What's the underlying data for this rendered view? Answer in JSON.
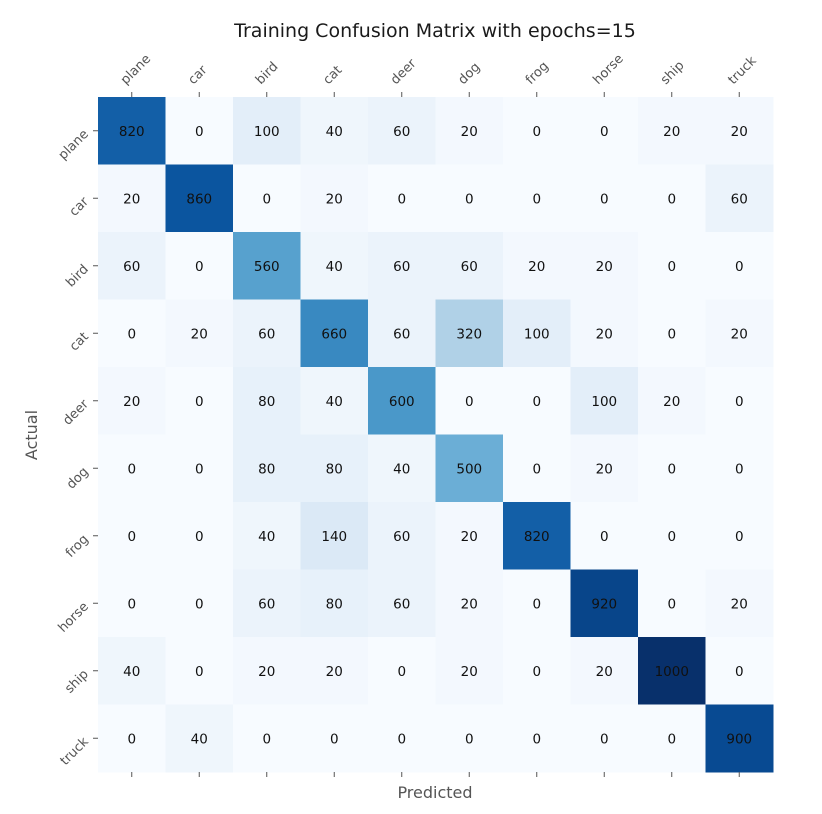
{
  "chart_data": {
    "type": "heatmap",
    "title": "Training Confusion Matrix with epochs=15",
    "xlabel": "Predicted",
    "ylabel": "Actual",
    "x_categories": [
      "plane",
      "car",
      "bird",
      "cat",
      "deer",
      "dog",
      "frog",
      "horse",
      "ship",
      "truck"
    ],
    "y_categories": [
      "plane",
      "car",
      "bird",
      "cat",
      "deer",
      "dog",
      "frog",
      "horse",
      "ship",
      "truck"
    ],
    "values": [
      [
        820,
        0,
        100,
        40,
        60,
        20,
        0,
        0,
        20,
        20
      ],
      [
        20,
        860,
        0,
        20,
        0,
        0,
        0,
        0,
        0,
        60
      ],
      [
        60,
        0,
        560,
        40,
        60,
        60,
        20,
        20,
        0,
        0
      ],
      [
        0,
        20,
        60,
        660,
        60,
        320,
        100,
        20,
        0,
        20
      ],
      [
        20,
        0,
        80,
        40,
        600,
        0,
        0,
        100,
        20,
        0
      ],
      [
        0,
        0,
        80,
        80,
        40,
        500,
        0,
        20,
        0,
        0
      ],
      [
        0,
        0,
        40,
        140,
        60,
        20,
        820,
        0,
        0,
        0
      ],
      [
        0,
        0,
        60,
        80,
        60,
        20,
        0,
        920,
        0,
        20
      ],
      [
        40,
        0,
        20,
        20,
        0,
        20,
        0,
        20,
        1000,
        0
      ],
      [
        0,
        40,
        0,
        0,
        0,
        0,
        0,
        0,
        0,
        900
      ]
    ],
    "value_range": [
      0,
      1000
    ],
    "colormap": "Blues",
    "colorbar": false,
    "grid": false
  }
}
